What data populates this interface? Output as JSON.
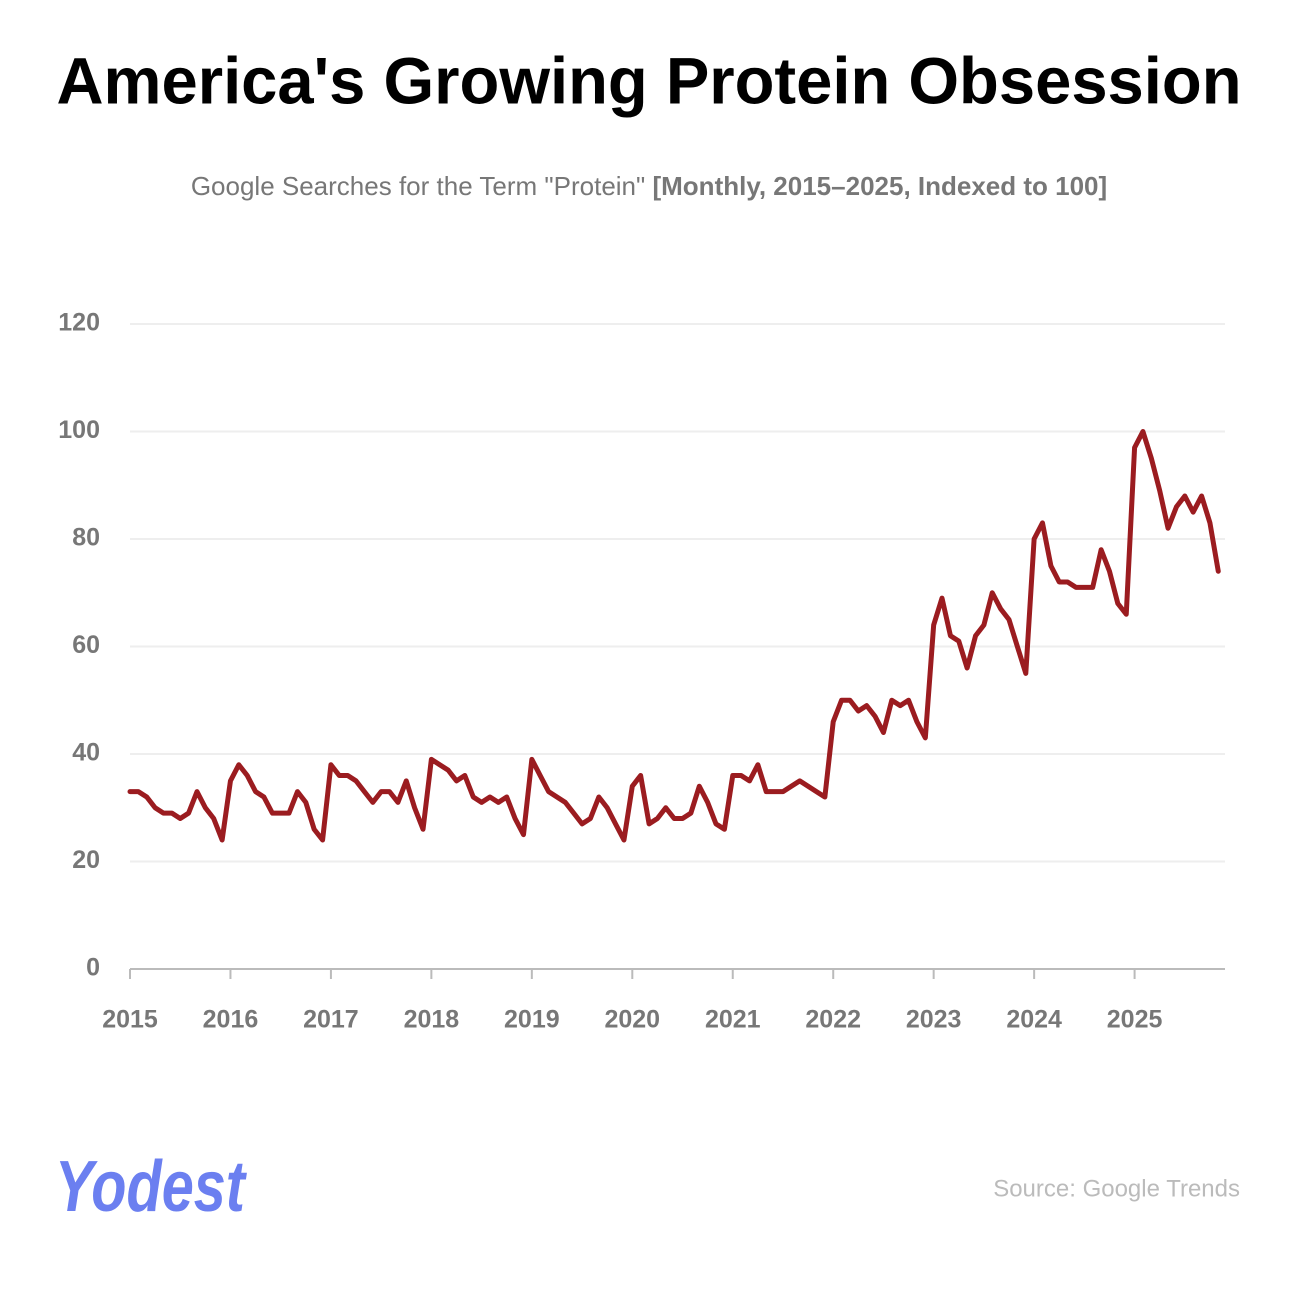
{
  "chart_data": {
    "type": "line",
    "title": "America's Growing Protein Obsession",
    "subtitle": "Google Searches for the Term \"Protein\"",
    "subtitle_detail": "[Monthly, 2015–2025, Indexed to 100]",
    "source": "Source: Google Trends",
    "logo": "Yodest",
    "x": [
      2015,
      2015.083,
      2015.167,
      2015.25,
      2015.333,
      2015.417,
      2015.5,
      2015.583,
      2015.667,
      2015.75,
      2015.833,
      2015.917,
      2016,
      2016.083,
      2016.167,
      2016.25,
      2016.333,
      2016.417,
      2016.5,
      2016.583,
      2016.667,
      2016.75,
      2016.833,
      2016.917,
      2017,
      2017.083,
      2017.167,
      2017.25,
      2017.333,
      2017.417,
      2017.5,
      2017.583,
      2017.667,
      2017.75,
      2017.833,
      2017.917,
      2018,
      2018.083,
      2018.167,
      2018.25,
      2018.333,
      2018.417,
      2018.5,
      2018.583,
      2018.667,
      2018.75,
      2018.833,
      2018.917,
      2019,
      2019.083,
      2019.167,
      2019.25,
      2019.333,
      2019.417,
      2019.5,
      2019.583,
      2019.667,
      2019.75,
      2019.833,
      2019.917,
      2020,
      2020.083,
      2020.167,
      2020.25,
      2020.333,
      2020.417,
      2020.5,
      2020.583,
      2020.667,
      2020.75,
      2020.833,
      2020.917,
      2021,
      2021.083,
      2021.167,
      2021.25,
      2021.333,
      2021.417,
      2021.5,
      2021.583,
      2021.667,
      2021.75,
      2021.833,
      2021.917,
      2022,
      2022.083,
      2022.167,
      2022.25,
      2022.333,
      2022.417,
      2022.5,
      2022.583,
      2022.667,
      2022.75,
      2022.833,
      2022.917,
      2023,
      2023.083,
      2023.167,
      2023.25,
      2023.333,
      2023.417,
      2023.5,
      2023.583,
      2023.667,
      2023.75,
      2023.833,
      2023.917,
      2024,
      2024.083,
      2024.167,
      2024.25,
      2024.333,
      2024.417,
      2024.5,
      2024.583,
      2024.667,
      2024.75,
      2024.833,
      2024.917,
      2025,
      2025.083,
      2025.167,
      2025.25,
      2025.333,
      2025.417,
      2025.5,
      2025.583,
      2025.667,
      2025.75,
      2025.833
    ],
    "series": [
      {
        "color": "#9b1c20",
        "values": [
          33,
          33,
          32,
          30,
          29,
          29,
          28,
          29,
          33,
          30,
          28,
          24,
          35,
          38,
          36,
          33,
          32,
          29,
          29,
          29,
          33,
          31,
          26,
          24,
          38,
          36,
          36,
          35,
          33,
          31,
          33,
          33,
          31,
          35,
          30,
          26,
          39,
          38,
          37,
          35,
          36,
          32,
          31,
          32,
          31,
          32,
          28,
          25,
          39,
          36,
          33,
          32,
          31,
          29,
          27,
          28,
          32,
          30,
          27,
          24,
          34,
          36,
          27,
          28,
          30,
          28,
          28,
          29,
          34,
          31,
          27,
          26,
          36,
          36,
          35,
          38,
          33,
          33,
          33,
          34,
          35,
          34,
          33,
          32,
          46,
          50,
          50,
          48,
          49,
          47,
          44,
          50,
          49,
          50,
          46,
          43,
          64,
          69,
          62,
          61,
          56,
          62,
          64,
          70,
          67,
          65,
          60,
          55,
          80,
          83,
          75,
          72,
          72,
          71,
          71,
          71,
          78,
          74,
          68,
          66,
          97,
          100,
          95,
          89,
          82,
          86,
          88,
          85,
          88,
          83,
          74
        ]
      }
    ],
    "xlim": [
      2015,
      2025.9
    ],
    "xticks": [
      2015,
      2016,
      2017,
      2018,
      2019,
      2020,
      2021,
      2022,
      2023,
      2024,
      2025
    ],
    "ylim": [
      0,
      120
    ],
    "yticks": [
      0,
      20,
      40,
      60,
      80,
      100,
      120
    ],
    "grid": true
  }
}
